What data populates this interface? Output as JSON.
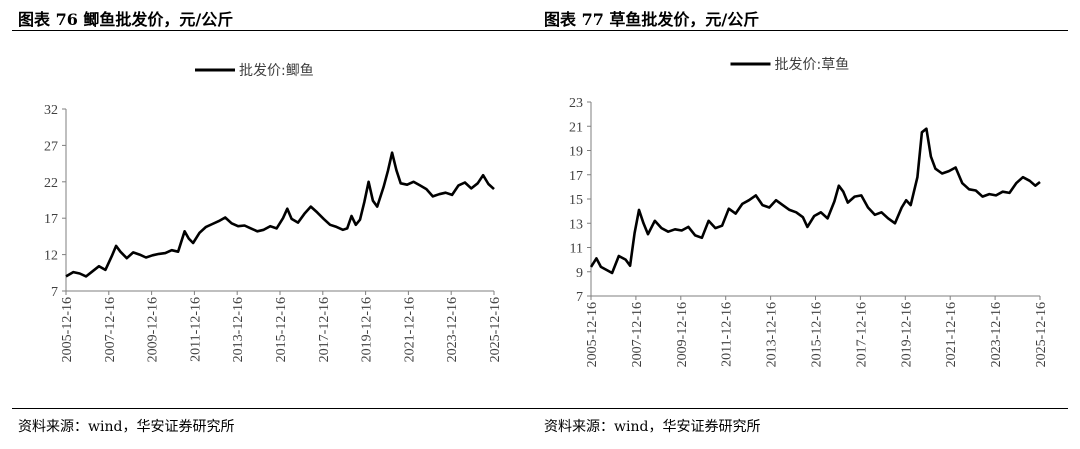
{
  "panels": [
    {
      "title": "图表 76 鲫鱼批发价，元/公斤",
      "source": "资料来源：wind，华安证券研究所"
    },
    {
      "title": "图表 77 草鱼批发价，元/公斤",
      "source": "资料来源：wind，华安证券研究所"
    }
  ],
  "chart_data": [
    {
      "type": "line",
      "legend_position": "top-center",
      "grid": false,
      "xlabel": "",
      "ylabel": "",
      "ylim": [
        7,
        32
      ],
      "yticks": [
        "7",
        "12",
        "17",
        "22",
        "27",
        "32"
      ],
      "xticks": [
        "2005-12-16",
        "2007-12-16",
        "2009-12-16",
        "2011-12-16",
        "2013-12-16",
        "2015-12-16",
        "2017-12-16",
        "2019-12-16",
        "2021-12-16",
        "2023-12-16",
        "2025-12-16"
      ],
      "xlim": [
        2005.96,
        2025.96
      ],
      "series": [
        {
          "name": "批发价:鲫鱼",
          "color": "#000000",
          "points": [
            [
              2005.96,
              9.0
            ],
            [
              2006.3,
              9.6
            ],
            [
              2006.6,
              9.4
            ],
            [
              2006.9,
              9.0
            ],
            [
              2007.2,
              9.7
            ],
            [
              2007.5,
              10.4
            ],
            [
              2007.8,
              9.9
            ],
            [
              2008.1,
              11.8
            ],
            [
              2008.3,
              13.2
            ],
            [
              2008.5,
              12.4
            ],
            [
              2008.8,
              11.5
            ],
            [
              2009.1,
              12.3
            ],
            [
              2009.4,
              12.0
            ],
            [
              2009.7,
              11.6
            ],
            [
              2010.0,
              11.9
            ],
            [
              2010.3,
              12.1
            ],
            [
              2010.6,
              12.2
            ],
            [
              2010.9,
              12.6
            ],
            [
              2011.2,
              12.4
            ],
            [
              2011.5,
              15.2
            ],
            [
              2011.7,
              14.2
            ],
            [
              2011.9,
              13.6
            ],
            [
              2012.2,
              15.0
            ],
            [
              2012.5,
              15.8
            ],
            [
              2012.8,
              16.2
            ],
            [
              2013.1,
              16.6
            ],
            [
              2013.4,
              17.1
            ],
            [
              2013.7,
              16.3
            ],
            [
              2014.0,
              15.9
            ],
            [
              2014.3,
              16.0
            ],
            [
              2014.6,
              15.6
            ],
            [
              2014.9,
              15.2
            ],
            [
              2015.2,
              15.4
            ],
            [
              2015.5,
              15.9
            ],
            [
              2015.8,
              15.6
            ],
            [
              2016.1,
              17.0
            ],
            [
              2016.3,
              18.3
            ],
            [
              2016.5,
              16.9
            ],
            [
              2016.8,
              16.4
            ],
            [
              2017.1,
              17.6
            ],
            [
              2017.4,
              18.6
            ],
            [
              2017.7,
              17.8
            ],
            [
              2018.0,
              16.9
            ],
            [
              2018.3,
              16.1
            ],
            [
              2018.6,
              15.8
            ],
            [
              2018.9,
              15.4
            ],
            [
              2019.1,
              15.6
            ],
            [
              2019.3,
              17.3
            ],
            [
              2019.5,
              16.1
            ],
            [
              2019.7,
              16.8
            ],
            [
              2019.9,
              19.2
            ],
            [
              2020.1,
              22.0
            ],
            [
              2020.3,
              19.4
            ],
            [
              2020.5,
              18.6
            ],
            [
              2020.8,
              21.3
            ],
            [
              2021.0,
              23.5
            ],
            [
              2021.2,
              26.0
            ],
            [
              2021.4,
              23.6
            ],
            [
              2021.6,
              21.8
            ],
            [
              2021.9,
              21.6
            ],
            [
              2022.2,
              22.0
            ],
            [
              2022.5,
              21.5
            ],
            [
              2022.8,
              21.0
            ],
            [
              2023.1,
              20.0
            ],
            [
              2023.4,
              20.3
            ],
            [
              2023.7,
              20.5
            ],
            [
              2024.0,
              20.2
            ],
            [
              2024.3,
              21.5
            ],
            [
              2024.6,
              21.9
            ],
            [
              2024.9,
              21.1
            ],
            [
              2025.2,
              21.8
            ],
            [
              2025.45,
              22.9
            ],
            [
              2025.7,
              21.7
            ],
            [
              2025.96,
              21.0
            ]
          ]
        }
      ]
    },
    {
      "type": "line",
      "legend_position": "top-center",
      "grid": false,
      "xlabel": "",
      "ylabel": "",
      "ylim": [
        7,
        23
      ],
      "yticks": [
        "7",
        "9",
        "11",
        "13",
        "15",
        "17",
        "19",
        "21",
        "23"
      ],
      "xticks": [
        "2005-12-16",
        "2007-12-16",
        "2009-12-16",
        "2011-12-16",
        "2013-12-16",
        "2015-12-16",
        "2017-12-16",
        "2019-12-16",
        "2021-12-16",
        "2023-12-16",
        "2025-12-16"
      ],
      "xlim": [
        2005.96,
        2025.96
      ],
      "series": [
        {
          "name": "批发价:草鱼",
          "color": "#000000",
          "points": [
            [
              2005.96,
              9.4
            ],
            [
              2006.2,
              10.1
            ],
            [
              2006.4,
              9.4
            ],
            [
              2006.7,
              9.1
            ],
            [
              2006.9,
              8.9
            ],
            [
              2007.2,
              10.3
            ],
            [
              2007.5,
              10.0
            ],
            [
              2007.7,
              9.5
            ],
            [
              2007.9,
              12.2
            ],
            [
              2008.1,
              14.1
            ],
            [
              2008.3,
              13.0
            ],
            [
              2008.5,
              12.1
            ],
            [
              2008.8,
              13.2
            ],
            [
              2009.1,
              12.6
            ],
            [
              2009.4,
              12.3
            ],
            [
              2009.7,
              12.5
            ],
            [
              2010.0,
              12.4
            ],
            [
              2010.3,
              12.7
            ],
            [
              2010.6,
              12.0
            ],
            [
              2010.9,
              11.8
            ],
            [
              2011.2,
              13.2
            ],
            [
              2011.5,
              12.6
            ],
            [
              2011.8,
              12.8
            ],
            [
              2012.1,
              14.2
            ],
            [
              2012.4,
              13.8
            ],
            [
              2012.7,
              14.6
            ],
            [
              2013.0,
              14.9
            ],
            [
              2013.3,
              15.3
            ],
            [
              2013.6,
              14.5
            ],
            [
              2013.9,
              14.3
            ],
            [
              2014.2,
              14.9
            ],
            [
              2014.5,
              14.5
            ],
            [
              2014.8,
              14.1
            ],
            [
              2015.1,
              13.9
            ],
            [
              2015.4,
              13.5
            ],
            [
              2015.6,
              12.7
            ],
            [
              2015.9,
              13.6
            ],
            [
              2016.2,
              13.9
            ],
            [
              2016.5,
              13.4
            ],
            [
              2016.8,
              14.8
            ],
            [
              2017.0,
              16.1
            ],
            [
              2017.2,
              15.6
            ],
            [
              2017.4,
              14.7
            ],
            [
              2017.7,
              15.2
            ],
            [
              2018.0,
              15.3
            ],
            [
              2018.3,
              14.3
            ],
            [
              2018.6,
              13.7
            ],
            [
              2018.9,
              13.9
            ],
            [
              2019.2,
              13.4
            ],
            [
              2019.5,
              13.0
            ],
            [
              2019.8,
              14.3
            ],
            [
              2020.0,
              14.9
            ],
            [
              2020.2,
              14.5
            ],
            [
              2020.5,
              16.8
            ],
            [
              2020.7,
              20.5
            ],
            [
              2020.9,
              20.8
            ],
            [
              2021.1,
              18.5
            ],
            [
              2021.3,
              17.5
            ],
            [
              2021.6,
              17.1
            ],
            [
              2021.9,
              17.3
            ],
            [
              2022.2,
              17.6
            ],
            [
              2022.5,
              16.3
            ],
            [
              2022.8,
              15.8
            ],
            [
              2023.1,
              15.7
            ],
            [
              2023.4,
              15.2
            ],
            [
              2023.7,
              15.4
            ],
            [
              2024.0,
              15.3
            ],
            [
              2024.3,
              15.6
            ],
            [
              2024.6,
              15.5
            ],
            [
              2024.9,
              16.3
            ],
            [
              2025.2,
              16.8
            ],
            [
              2025.5,
              16.5
            ],
            [
              2025.75,
              16.1
            ],
            [
              2025.96,
              16.4
            ]
          ]
        }
      ]
    }
  ]
}
